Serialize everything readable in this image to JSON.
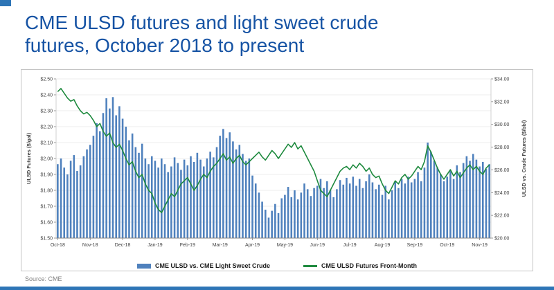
{
  "page": {
    "title_line1": "CME ULSD futures and light sweet crude",
    "title_line2": "futures, October 2018 to present",
    "source": "Source: CME",
    "title_color": "#1653a4",
    "accent_color": "#2e75b6"
  },
  "chart_data": {
    "type": "bar",
    "note": "combination chart: daily blue bars (spread, right axis) + green line (ULSD front-month, left axis)",
    "x_tick_labels": [
      "Oct-18",
      "Nov-18",
      "Dec-18",
      "Jan-19",
      "Feb-19",
      "Mar-19",
      "Apr-19",
      "May-19",
      "Jun-19",
      "Jul-19",
      "Aug-19",
      "Sep-19",
      "Oct-19",
      "Nov-19"
    ],
    "x_tick_indices": [
      0,
      10,
      20,
      30,
      40,
      50,
      60,
      70,
      80,
      90,
      100,
      110,
      120,
      130
    ],
    "grid": true,
    "legend_position": "bottom",
    "y_left": {
      "title": "ULSD Futures ($/gal)",
      "min": 1.5,
      "max": 2.5,
      "step": 0.1
    },
    "y_right": {
      "title": "ULSD vs. Crude Futures ($/bbl)",
      "min": 20.0,
      "max": 34.0,
      "step": 2.0
    },
    "series": [
      {
        "name": "CME ULSD vs. CME Light Sweet Crude",
        "type": "bar",
        "axis": "right",
        "color": "#4f81bd",
        "values": [
          26.5,
          27.0,
          26.2,
          25.6,
          26.8,
          27.3,
          25.9,
          26.4,
          27.2,
          27.8,
          28.2,
          29.0,
          30.1,
          29.4,
          31.0,
          32.3,
          31.4,
          32.4,
          30.8,
          31.6,
          30.5,
          29.8,
          28.6,
          29.2,
          28.0,
          27.5,
          28.3,
          27.0,
          26.5,
          27.2,
          26.8,
          26.2,
          27.0,
          26.5,
          25.8,
          26.3,
          27.1,
          26.6,
          26.0,
          26.9,
          26.4,
          27.2,
          26.7,
          27.5,
          26.9,
          26.3,
          27.0,
          27.6,
          27.1,
          28.0,
          29.0,
          29.6,
          28.8,
          29.3,
          28.5,
          27.8,
          28.2,
          27.4,
          26.8,
          27.0,
          25.5,
          24.8,
          24.0,
          23.2,
          22.5,
          21.8,
          22.4,
          23.0,
          22.2,
          23.5,
          23.8,
          24.5,
          23.6,
          24.2,
          23.4,
          24.0,
          24.8,
          24.3,
          23.7,
          24.4,
          24.6,
          25.2,
          24.4,
          25.0,
          24.2,
          23.6,
          24.3,
          25.1,
          24.7,
          25.3,
          24.8,
          25.4,
          24.6,
          25.2,
          24.4,
          25.0,
          25.6,
          24.9,
          24.3,
          24.7,
          23.8,
          24.6,
          23.4,
          24.2,
          25.0,
          24.4,
          25.2,
          24.8,
          25.4,
          24.9,
          25.2,
          25.8,
          25.0,
          26.2,
          28.4,
          27.6,
          26.8,
          26.2,
          25.6,
          25.0,
          25.4,
          26.0,
          25.2,
          26.4,
          25.8,
          26.6,
          27.2,
          26.8,
          27.4,
          26.9,
          26.3,
          26.7,
          26.1,
          26.5
        ]
      },
      {
        "name": "CME ULSD Futures Front-Month",
        "type": "line",
        "axis": "left",
        "color": "#1e8a3e",
        "values": [
          2.42,
          2.44,
          2.41,
          2.38,
          2.36,
          2.37,
          2.33,
          2.3,
          2.28,
          2.29,
          2.27,
          2.24,
          2.2,
          2.22,
          2.17,
          2.14,
          2.16,
          2.1,
          2.07,
          2.09,
          2.05,
          2.0,
          1.96,
          1.98,
          1.92,
          1.88,
          1.9,
          1.84,
          1.8,
          1.78,
          1.72,
          1.68,
          1.66,
          1.7,
          1.74,
          1.78,
          1.76,
          1.8,
          1.84,
          1.86,
          1.88,
          1.84,
          1.8,
          1.83,
          1.87,
          1.9,
          1.88,
          1.92,
          1.95,
          1.97,
          2.0,
          2.03,
          1.99,
          2.01,
          1.97,
          2.0,
          2.02,
          1.98,
          1.96,
          1.98,
          2.0,
          2.02,
          2.04,
          2.01,
          1.99,
          2.02,
          2.05,
          2.03,
          2.0,
          2.03,
          2.06,
          2.09,
          2.07,
          2.1,
          2.06,
          2.08,
          2.04,
          2.0,
          1.96,
          1.92,
          1.86,
          1.8,
          1.78,
          1.76,
          1.8,
          1.84,
          1.88,
          1.92,
          1.94,
          1.95,
          1.93,
          1.96,
          1.94,
          1.97,
          1.95,
          1.92,
          1.94,
          1.9,
          1.88,
          1.89,
          1.84,
          1.8,
          1.78,
          1.82,
          1.86,
          1.84,
          1.88,
          1.9,
          1.87,
          1.89,
          1.92,
          1.95,
          1.93,
          1.98,
          2.08,
          2.04,
          1.99,
          1.94,
          1.9,
          1.87,
          1.9,
          1.93,
          1.89,
          1.92,
          1.88,
          1.91,
          1.94,
          1.96,
          1.93,
          1.95,
          1.92,
          1.9,
          1.94,
          1.96
        ]
      }
    ]
  }
}
